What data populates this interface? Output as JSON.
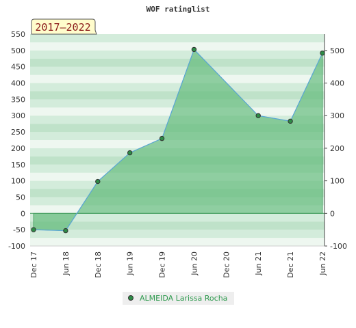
{
  "chart_data": {
    "type": "area",
    "title": "WOF ratinglist",
    "badge": "2017–2022",
    "categories": [
      "Dec 17",
      "Jun 18",
      "Dec 18",
      "Jun 19",
      "Dec 19",
      "Jun 20",
      "Dec 20",
      "Jun 21",
      "Dec 21",
      "Jun 22"
    ],
    "series": [
      {
        "name": "ALMEIDA Larissa Rocha",
        "points": [
          {
            "x": 0,
            "y": -50
          },
          {
            "x": 1,
            "y": -53
          },
          {
            "x": 2,
            "y": 98
          },
          {
            "x": 3,
            "y": 186
          },
          {
            "x": 4,
            "y": 230
          },
          {
            "x": 5,
            "y": 503
          },
          {
            "x": 7,
            "y": 300
          },
          {
            "x": 8,
            "y": 283
          },
          {
            "x": 9,
            "y": 492
          }
        ]
      }
    ],
    "ylim": [
      -100,
      550
    ],
    "y_ticks_left": [
      -100,
      -50,
      0,
      50,
      100,
      150,
      200,
      250,
      300,
      350,
      400,
      450,
      500,
      550
    ],
    "y_ticks_right": [
      -100,
      0,
      100,
      200,
      300,
      400,
      500
    ],
    "colors": {
      "fill": "#5cb877",
      "line": "#5aa6d6",
      "marker_fill": "#2e8b47",
      "band_dark": "#b8dec3",
      "band_light": "#e4f3e8"
    },
    "legend_position": "bottom-center",
    "grid": true
  }
}
